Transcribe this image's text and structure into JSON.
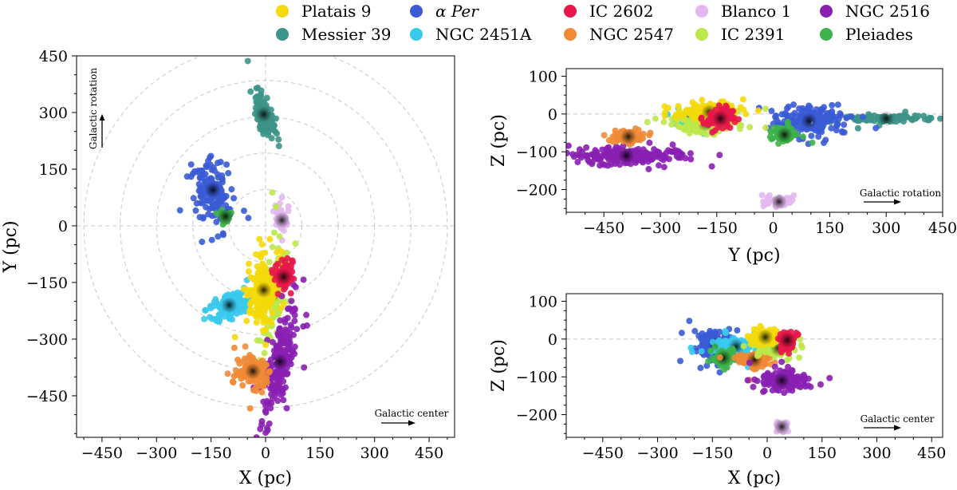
{
  "legend": [
    {
      "name": "Platais 9",
      "color": "#f5d90a"
    },
    {
      "name": "α Per",
      "color": "#3b5bd6"
    },
    {
      "name": "IC 2602",
      "color": "#e8174a"
    },
    {
      "name": "Blanco 1",
      "color": "#e3b8f0"
    },
    {
      "name": "NGC 2516",
      "color": "#8a1fb2"
    },
    {
      "name": "Messier 39",
      "color": "#3c9488"
    },
    {
      "name": "NGC 2451A",
      "color": "#38c9ec"
    },
    {
      "name": "NGC 2547",
      "color": "#f08a35"
    },
    {
      "name": "IC 2391",
      "color": "#bde84a"
    },
    {
      "name": "Pleiades",
      "color": "#3db34a"
    }
  ],
  "chart_data": [
    {
      "type": "scatter",
      "panel": "xy",
      "xlabel": "X (pc)",
      "ylabel": "Y (pc)",
      "xlim": [
        -520,
        520
      ],
      "ylim": [
        -560,
        450
      ],
      "xticks": [
        -450,
        -300,
        -150,
        0,
        150,
        300,
        450
      ],
      "yticks": [
        -450,
        -300,
        -150,
        0,
        150,
        300,
        450
      ],
      "xtick_labels": [
        "−450",
        "−300",
        "−150",
        "0",
        "150",
        "300",
        "450"
      ],
      "ytick_labels": [
        "−450",
        "−300",
        "−150",
        "0",
        "150",
        "300",
        "450"
      ],
      "circles": [
        100,
        200,
        300,
        400,
        500
      ],
      "annotations": [
        "Galactic rotation",
        "Galactic center"
      ],
      "clusters": [
        {
          "name": "Messier 39",
          "cx": -5,
          "cy": 295,
          "sx": 10,
          "sy": 30,
          "rot": 20,
          "n": 110,
          "ext": 0.35
        },
        {
          "name": "α Per",
          "cx": -145,
          "cy": 95,
          "sx": 20,
          "sy": 33,
          "rot": 10,
          "n": 160,
          "ext": 0.4
        },
        {
          "name": "Pleiades",
          "cx": -110,
          "cy": 25,
          "sx": 8,
          "sy": 10,
          "rot": 0,
          "n": 25,
          "ext": 0
        },
        {
          "name": "Blanco 1",
          "cx": 45,
          "cy": 15,
          "sx": 8,
          "sy": 16,
          "rot": 0,
          "n": 40,
          "ext": 0.3
        },
        {
          "name": "IC 2391",
          "cx": 20,
          "cy": -180,
          "sx": 15,
          "sy": 45,
          "rot": -5,
          "n": 140,
          "ext": 0.3
        },
        {
          "name": "NGC 2516",
          "cx": 40,
          "cy": -360,
          "sx": 15,
          "sy": 70,
          "rot": -15,
          "n": 210,
          "ext": 0.25
        },
        {
          "name": "NGC 2547",
          "cx": -35,
          "cy": -385,
          "sx": 25,
          "sy": 22,
          "rot": 0,
          "n": 120,
          "ext": 0.1
        },
        {
          "name": "NGC 2451A",
          "cx": -100,
          "cy": -210,
          "sx": 28,
          "sy": 15,
          "rot": 30,
          "n": 120,
          "ext": 0.2
        },
        {
          "name": "Platais 9",
          "cx": -5,
          "cy": -170,
          "sx": 20,
          "sy": 42,
          "rot": 0,
          "n": 170,
          "ext": 0.15
        },
        {
          "name": "IC 2602",
          "cx": 50,
          "cy": -135,
          "sx": 14,
          "sy": 17,
          "rot": 0,
          "n": 90,
          "ext": 0.05
        }
      ]
    },
    {
      "type": "scatter",
      "panel": "yz",
      "xlabel": "Y (pc)",
      "ylabel": "Z (pc)",
      "xlim": [
        -550,
        450
      ],
      "ylim": [
        -260,
        120
      ],
      "xticks": [
        -450,
        -300,
        -150,
        0,
        150,
        300,
        450
      ],
      "yticks": [
        -200,
        -100,
        0,
        100
      ],
      "xtick_labels": [
        "−450",
        "−300",
        "−150",
        "0",
        "150",
        "300",
        "450"
      ],
      "ytick_labels": [
        "−200",
        "−100",
        "0",
        "100"
      ],
      "annotations": [
        "Galactic rotation"
      ],
      "clusters": [
        {
          "name": "Messier 39",
          "cx": 300,
          "cy": -12,
          "sx": 50,
          "sy": 5,
          "rot": 0,
          "n": 100,
          "ext": 0.2
        },
        {
          "name": "α Per",
          "cx": 95,
          "cy": -18,
          "sx": 42,
          "sy": 17,
          "rot": 0,
          "n": 170,
          "ext": 0.2
        },
        {
          "name": "Pleiades",
          "cx": 30,
          "cy": -55,
          "sx": 18,
          "sy": 11,
          "rot": 0,
          "n": 70,
          "ext": 0.1
        },
        {
          "name": "Blanco 1",
          "cx": 15,
          "cy": -232,
          "sx": 22,
          "sy": 6,
          "rot": 0,
          "n": 50,
          "ext": 0.1
        },
        {
          "name": "NGC 2516",
          "cx": -390,
          "cy": -110,
          "sx": 75,
          "sy": 10,
          "rot": 0,
          "n": 220,
          "ext": 0.25
        },
        {
          "name": "NGC 2547",
          "cx": -385,
          "cy": -60,
          "sx": 20,
          "sy": 8,
          "rot": 0,
          "n": 80,
          "ext": 0.05
        },
        {
          "name": "NGC 2451A",
          "cx": -220,
          "cy": -15,
          "sx": 28,
          "sy": 9,
          "rot": 0,
          "n": 90,
          "ext": 0.2
        },
        {
          "name": "IC 2391",
          "cx": -180,
          "cy": -25,
          "sx": 45,
          "sy": 12,
          "rot": 0,
          "n": 140,
          "ext": 0.3
        },
        {
          "name": "Platais 9",
          "cx": -170,
          "cy": 5,
          "sx": 38,
          "sy": 12,
          "rot": 0,
          "n": 150,
          "ext": 0.15
        },
        {
          "name": "IC 2602",
          "cx": -140,
          "cy": -12,
          "sx": 18,
          "sy": 12,
          "rot": 0,
          "n": 90,
          "ext": 0.05
        }
      ]
    },
    {
      "type": "scatter",
      "panel": "xz",
      "xlabel": "X (pc)",
      "ylabel": "Z (pc)",
      "xlim": [
        -550,
        480
      ],
      "ylim": [
        -260,
        120
      ],
      "xticks": [
        -450,
        -300,
        -150,
        0,
        150,
        300,
        450
      ],
      "yticks": [
        -200,
        -100,
        0,
        100
      ],
      "xtick_labels": [
        "−450",
        "−300",
        "−150",
        "0",
        "150",
        "300",
        "450"
      ],
      "ytick_labels": [
        "−200",
        "−100",
        "0",
        "100"
      ],
      "annotations": [
        "Galactic center"
      ],
      "clusters": [
        {
          "name": "α Per",
          "cx": -140,
          "cy": -15,
          "sx": 22,
          "sy": 16,
          "rot": 0,
          "n": 150,
          "ext": 0.2
        },
        {
          "name": "NGC 2451A",
          "cx": -85,
          "cy": -20,
          "sx": 32,
          "sy": 12,
          "rot": 0,
          "n": 110,
          "ext": 0.15
        },
        {
          "name": "Pleiades",
          "cx": -120,
          "cy": -50,
          "sx": 15,
          "sy": 11,
          "rot": 0,
          "n": 70,
          "ext": 0.1
        },
        {
          "name": "NGC 2547",
          "cx": -35,
          "cy": -55,
          "sx": 22,
          "sy": 10,
          "rot": 0,
          "n": 80,
          "ext": 0.05
        },
        {
          "name": "IC 2391",
          "cx": 30,
          "cy": -25,
          "sx": 25,
          "sy": 11,
          "rot": 0,
          "n": 100,
          "ext": 0.2
        },
        {
          "name": "Platais 9",
          "cx": -5,
          "cy": 5,
          "sx": 20,
          "sy": 10,
          "rot": 0,
          "n": 120,
          "ext": 0.1
        },
        {
          "name": "IC 2602",
          "cx": 55,
          "cy": -3,
          "sx": 12,
          "sy": 12,
          "rot": 0,
          "n": 70,
          "ext": 0.05
        },
        {
          "name": "NGC 2516",
          "cx": 40,
          "cy": -110,
          "sx": 30,
          "sy": 11,
          "rot": 0,
          "n": 150,
          "ext": 0.15
        },
        {
          "name": "Blanco 1",
          "cx": 40,
          "cy": -232,
          "sx": 8,
          "sy": 7,
          "rot": 0,
          "n": 40,
          "ext": 0
        }
      ]
    }
  ]
}
